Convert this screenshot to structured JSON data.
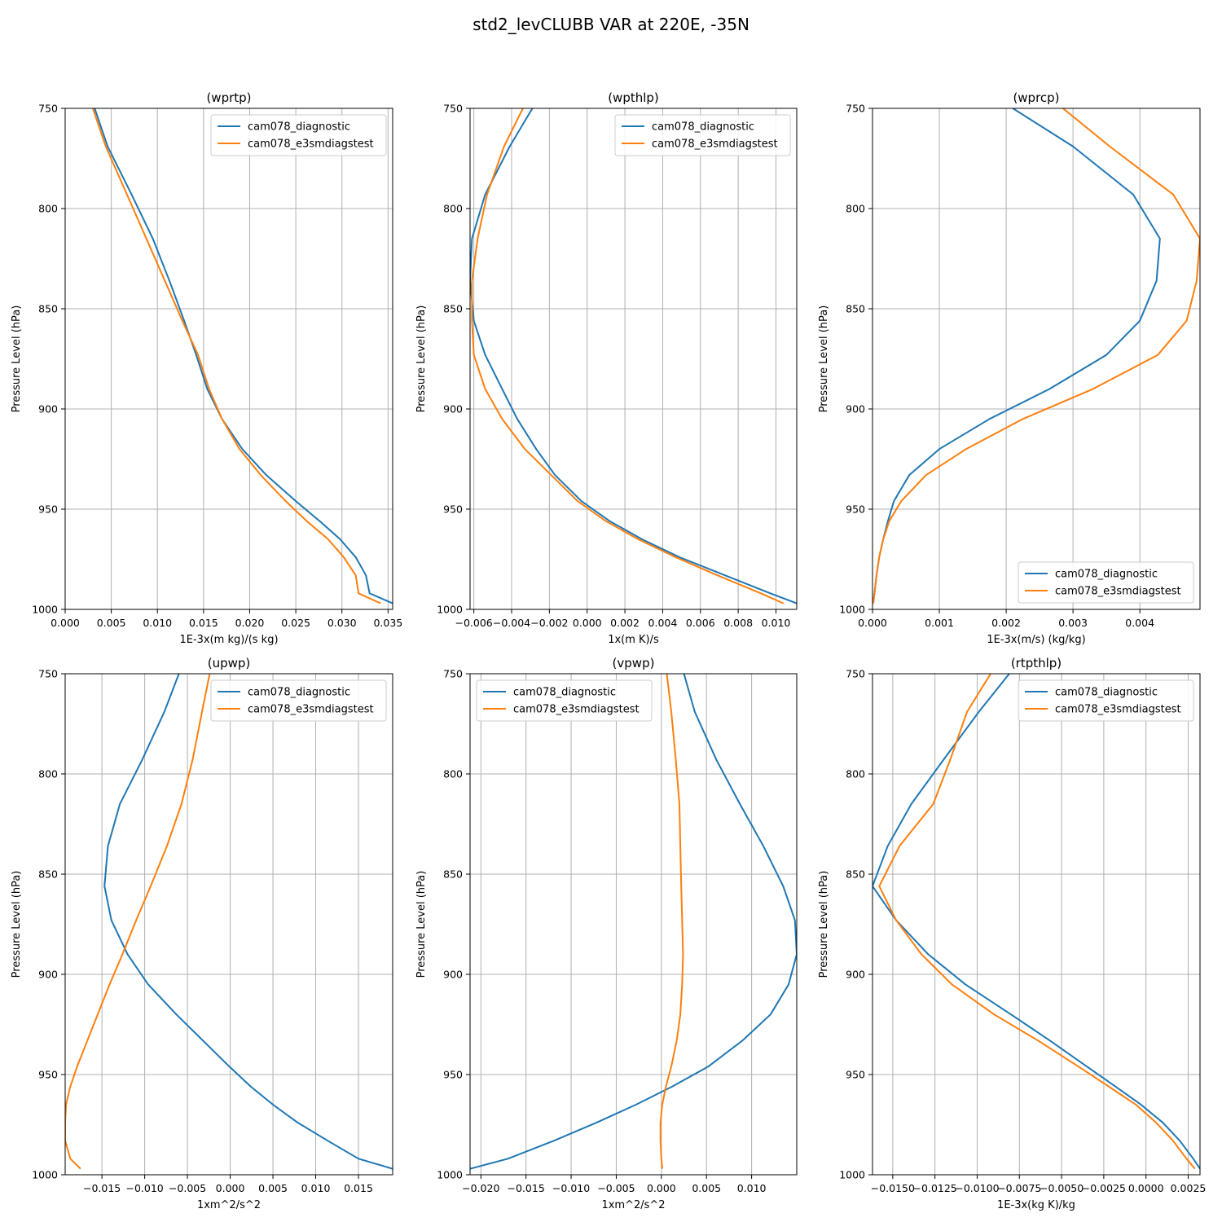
{
  "figure_title": "std2_levCLUBB VAR at 220E, -35N",
  "colors": {
    "series_1": "#1f77b4",
    "series_2": "#ff7f0e",
    "grid": "#b0b0b0",
    "legend_border": "#cccccc"
  },
  "chart_data": [
    {
      "type": "line",
      "title": "(wprtp)",
      "xlabel": "1E-3x(m kg)/(s kg)",
      "ylabel": "Pressure Level (hPa)",
      "xlim": [
        0,
        0.0355
      ],
      "ylim": [
        1000,
        750
      ],
      "grid": true,
      "legend": "upper-right",
      "x_ticks": [
        "0.000",
        "0.005",
        "0.010",
        "0.015",
        "0.020",
        "0.025",
        "0.030",
        "0.035"
      ],
      "x_tick_values": [
        0,
        0.005,
        0.01,
        0.015,
        0.02,
        0.025,
        0.03,
        0.035
      ],
      "y_ticks": [
        "750",
        "800",
        "850",
        "900",
        "950",
        "1000"
      ],
      "y_tick_values": [
        750,
        800,
        850,
        900,
        950,
        1000
      ],
      "series": [
        {
          "name": "cam078_diagnostic",
          "p": [
            750,
            769,
            793,
            815,
            836,
            856,
            873,
            890,
            905,
            920,
            933,
            946,
            956,
            965,
            974,
            983,
            992,
            997
          ],
          "x": [
            0.0032,
            0.0046,
            0.0072,
            0.0095,
            0.0113,
            0.0129,
            0.0142,
            0.0154,
            0.017,
            0.0192,
            0.0218,
            0.025,
            0.0276,
            0.0298,
            0.0315,
            0.0326,
            0.033,
            0.0355
          ]
        },
        {
          "name": "cam078_e3smdiagstest",
          "p": [
            750,
            769,
            793,
            815,
            836,
            856,
            873,
            890,
            905,
            920,
            933,
            946,
            956,
            965,
            974,
            983,
            992,
            997
          ],
          "x": [
            0.003,
            0.0044,
            0.0067,
            0.0088,
            0.0108,
            0.0127,
            0.0144,
            0.0156,
            0.017,
            0.0189,
            0.0212,
            0.0239,
            0.0262,
            0.0285,
            0.0302,
            0.0315,
            0.0318,
            0.0342
          ]
        }
      ]
    },
    {
      "type": "line",
      "title": "(wpthlp)",
      "xlabel": "1x(m K)/s",
      "ylabel": "Pressure Level (hPa)",
      "xlim": [
        -0.0062,
        0.0111
      ],
      "ylim": [
        1000,
        750
      ],
      "grid": true,
      "legend": "upper-right",
      "x_ticks": [
        "−0.006",
        "−0.004",
        "−0.002",
        "0.000",
        "0.002",
        "0.004",
        "0.006",
        "0.008",
        "0.010"
      ],
      "x_tick_values": [
        -0.006,
        -0.004,
        -0.002,
        0,
        0.002,
        0.004,
        0.006,
        0.008,
        0.01
      ],
      "y_ticks": [
        "750",
        "800",
        "850",
        "900",
        "950",
        "1000"
      ],
      "y_tick_values": [
        750,
        800,
        850,
        900,
        950,
        1000
      ],
      "series": [
        {
          "name": "cam078_diagnostic",
          "p": [
            750,
            769,
            793,
            815,
            836,
            856,
            873,
            890,
            905,
            920,
            933,
            946,
            956,
            965,
            974,
            983,
            992,
            997
          ],
          "x": [
            -0.0029,
            -0.0041,
            -0.0054,
            -0.0061,
            -0.0062,
            -0.006,
            -0.0054,
            -0.0045,
            -0.0037,
            -0.0027,
            -0.0017,
            -0.0003,
            0.0012,
            0.0029,
            0.0049,
            0.0073,
            0.0097,
            0.0111
          ]
        },
        {
          "name": "cam078_e3smdiagstest",
          "p": [
            750,
            769,
            793,
            815,
            836,
            856,
            873,
            890,
            905,
            920,
            933,
            946,
            956,
            965,
            974,
            983,
            992,
            997
          ],
          "x": [
            -0.0034,
            -0.0044,
            -0.0053,
            -0.0058,
            -0.0061,
            -0.0061,
            -0.006,
            -0.0054,
            -0.0045,
            -0.0033,
            -0.0019,
            -0.0005,
            0.001,
            0.0027,
            0.0047,
            0.0069,
            0.0092,
            0.0104
          ]
        }
      ]
    },
    {
      "type": "line",
      "title": "(wprcp)",
      "xlabel": "1E-3x(m/s) (kg/kg)",
      "ylabel": "Pressure Level (hPa)",
      "xlim": [
        0,
        0.0049
      ],
      "ylim": [
        1000,
        750
      ],
      "grid": true,
      "legend": "lower-right",
      "x_ticks": [
        "0.000",
        "0.001",
        "0.002",
        "0.003",
        "0.004"
      ],
      "x_tick_values": [
        0,
        0.001,
        0.002,
        0.003,
        0.004
      ],
      "y_ticks": [
        "750",
        "800",
        "850",
        "900",
        "950",
        "1000"
      ],
      "y_tick_values": [
        750,
        800,
        850,
        900,
        950,
        1000
      ],
      "series": [
        {
          "name": "cam078_diagnostic",
          "p": [
            750,
            769,
            793,
            815,
            836,
            856,
            873,
            890,
            905,
            920,
            933,
            946,
            956,
            965,
            974,
            983,
            992,
            997
          ],
          "x": [
            0.0021,
            0.003,
            0.0039,
            0.0043,
            0.00425,
            0.004,
            0.0035,
            0.00265,
            0.00175,
            0.001,
            0.00055,
            0.00032,
            0.00023,
            0.00016,
            0.0001,
            6e-05,
            3e-05,
            1e-05
          ]
        },
        {
          "name": "cam078_e3smdiagstest",
          "p": [
            750,
            769,
            793,
            815,
            836,
            856,
            873,
            890,
            905,
            920,
            933,
            946,
            956,
            965,
            974,
            983,
            992,
            997
          ],
          "x": [
            0.00285,
            0.00355,
            0.0045,
            0.0049,
            0.00485,
            0.0047,
            0.00427,
            0.0033,
            0.00225,
            0.0014,
            0.0008,
            0.00043,
            0.00025,
            0.00016,
            0.0001,
            6e-05,
            3e-05,
            1e-05
          ]
        }
      ]
    },
    {
      "type": "line",
      "title": "(upwp)",
      "xlabel": "1xm^2/s^2",
      "ylabel": "Pressure Level (hPa)",
      "xlim": [
        -0.0193,
        0.019
      ],
      "ylim": [
        1000,
        750
      ],
      "grid": true,
      "legend": "upper-right",
      "x_ticks": [
        "−0.015",
        "−0.010",
        "−0.005",
        "0.000",
        "0.005",
        "0.010",
        "0.015"
      ],
      "x_tick_values": [
        -0.015,
        -0.01,
        -0.005,
        0,
        0.005,
        0.01,
        0.015
      ],
      "y_ticks": [
        "750",
        "800",
        "850",
        "900",
        "950",
        "1000"
      ],
      "y_tick_values": [
        750,
        800,
        850,
        900,
        950,
        1000
      ],
      "series": [
        {
          "name": "cam078_diagnostic",
          "p": [
            750,
            769,
            793,
            815,
            836,
            856,
            873,
            890,
            905,
            920,
            933,
            946,
            956,
            965,
            974,
            983,
            992,
            997
          ],
          "x": [
            -0.006,
            -0.0077,
            -0.0103,
            -0.0129,
            -0.0143,
            -0.0147,
            -0.0139,
            -0.012,
            -0.0096,
            -0.0063,
            -0.0032,
            -0.0001,
            0.0024,
            0.005,
            0.0079,
            0.0114,
            0.015,
            0.019
          ]
        },
        {
          "name": "cam078_e3smdiagstest",
          "p": [
            750,
            769,
            793,
            815,
            836,
            856,
            873,
            890,
            905,
            920,
            933,
            946,
            956,
            965,
            974,
            983,
            992,
            997
          ],
          "x": [
            -0.0024,
            -0.0033,
            -0.0044,
            -0.0057,
            -0.0074,
            -0.0093,
            -0.011,
            -0.0126,
            -0.0141,
            -0.0155,
            -0.0167,
            -0.0179,
            -0.0187,
            -0.0192,
            -0.0193,
            -0.0193,
            -0.0187,
            -0.0175
          ]
        }
      ]
    },
    {
      "type": "line",
      "title": "(vpwp)",
      "xlabel": "1xm^2/s^2",
      "ylabel": "Pressure Level (hPa)",
      "xlim": [
        -0.0212,
        0.015
      ],
      "ylim": [
        1000,
        750
      ],
      "grid": true,
      "legend": "upper-left",
      "x_ticks": [
        "−0.020",
        "−0.015",
        "−0.010",
        "−0.005",
        "0.000",
        "0.005",
        "0.010"
      ],
      "x_tick_values": [
        -0.02,
        -0.015,
        -0.01,
        -0.005,
        0,
        0.005,
        0.01
      ],
      "y_ticks": [
        "750",
        "800",
        "850",
        "900",
        "950",
        "1000"
      ],
      "y_tick_values": [
        750,
        800,
        850,
        900,
        950,
        1000
      ],
      "series": [
        {
          "name": "cam078_diagnostic",
          "p": [
            750,
            769,
            793,
            815,
            836,
            856,
            873,
            890,
            905,
            920,
            933,
            946,
            956,
            965,
            974,
            983,
            992,
            997
          ],
          "x": [
            0.0025,
            0.0037,
            0.0061,
            0.0087,
            0.0113,
            0.0135,
            0.0148,
            0.015,
            0.0141,
            0.0121,
            0.009,
            0.0052,
            0.0012,
            -0.0028,
            -0.0072,
            -0.0119,
            -0.017,
            -0.0212
          ]
        },
        {
          "name": "cam078_e3smdiagstest",
          "p": [
            750,
            769,
            793,
            815,
            836,
            856,
            873,
            890,
            905,
            920,
            933,
            946,
            956,
            965,
            974,
            983,
            992,
            997
          ],
          "x": [
            0.0006,
            0.0011,
            0.0016,
            0.002,
            0.0021,
            0.0022,
            0.0023,
            0.0024,
            0.0023,
            0.0021,
            0.0017,
            0.0011,
            0.0005,
            0.0001,
            -0.0001,
            -0.0001,
            0.0,
            0.0001
          ]
        }
      ]
    },
    {
      "type": "line",
      "title": "(rtpthlp)",
      "xlabel": "1E-3x(kg K)/kg",
      "ylabel": "Pressure Level (hPa)",
      "xlim": [
        -0.0162,
        0.0032
      ],
      "ylim": [
        1000,
        750
      ],
      "grid": true,
      "legend": "upper-right",
      "x_ticks": [
        "−0.0150",
        "−0.0125",
        "−0.0100",
        "−0.0075",
        "−0.0050",
        "−0.0025",
        "0.0000",
        "0.0025"
      ],
      "x_tick_values": [
        -0.015,
        -0.0125,
        -0.01,
        -0.0075,
        -0.005,
        -0.0025,
        0,
        0.0025
      ],
      "y_ticks": [
        "750",
        "800",
        "850",
        "900",
        "950",
        "1000"
      ],
      "y_tick_values": [
        750,
        800,
        850,
        900,
        950,
        1000
      ],
      "series": [
        {
          "name": "cam078_diagnostic",
          "p": [
            750,
            769,
            793,
            815,
            836,
            856,
            873,
            890,
            905,
            920,
            933,
            946,
            956,
            965,
            974,
            983,
            992,
            997
          ],
          "x": [
            -0.0081,
            -0.0099,
            -0.012,
            -0.0139,
            -0.0153,
            -0.0162,
            -0.0148,
            -0.0129,
            -0.0107,
            -0.008,
            -0.0057,
            -0.0035,
            -0.0018,
            -0.0003,
            0.001,
            0.002,
            0.0028,
            0.0032
          ]
        },
        {
          "name": "cam078_e3smdiagstest",
          "p": [
            750,
            769,
            793,
            815,
            836,
            856,
            873,
            890,
            905,
            920,
            933,
            946,
            956,
            965,
            974,
            983,
            992,
            997
          ],
          "x": [
            -0.0092,
            -0.0106,
            -0.0116,
            -0.0126,
            -0.0146,
            -0.0158,
            -0.0148,
            -0.0133,
            -0.0115,
            -0.009,
            -0.0064,
            -0.004,
            -0.0022,
            -0.0006,
            0.0006,
            0.0016,
            0.0024,
            0.0029
          ]
        }
      ]
    }
  ]
}
